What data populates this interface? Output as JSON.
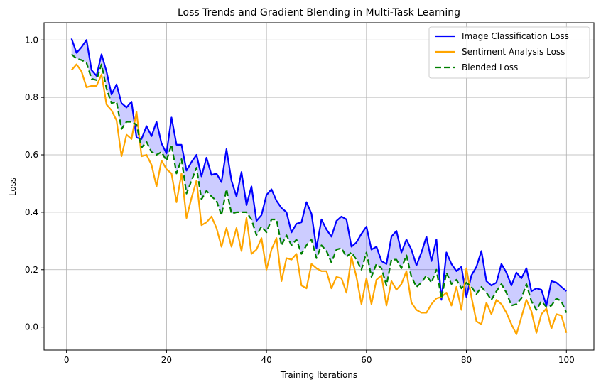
{
  "chart_data": {
    "type": "line",
    "title": "Loss Trends and Gradient Blending in Multi-Task Learning",
    "xlabel": "Training Iterations",
    "ylabel": "Loss",
    "xlim": [
      -4.5,
      105.5
    ],
    "ylim": [
      -0.08,
      1.06
    ],
    "xticks": [
      0,
      20,
      40,
      60,
      80,
      100
    ],
    "yticks": [
      0.0,
      0.2,
      0.4,
      0.6,
      0.8,
      1.0
    ],
    "xtick_labels": [
      "0",
      "20",
      "40",
      "60",
      "80",
      "100"
    ],
    "ytick_labels": [
      "0.0",
      "0.2",
      "0.4",
      "0.6",
      "0.8",
      "1.0"
    ],
    "grid": true,
    "legend_position": "top-right",
    "fill_between": {
      "series": [
        "Image Classification Loss",
        "Blended Loss"
      ],
      "color": "#0000ff",
      "opacity": 0.2
    },
    "x": [
      1,
      2,
      3,
      4,
      5,
      6,
      7,
      8,
      9,
      10,
      11,
      12,
      13,
      14,
      15,
      16,
      17,
      18,
      19,
      20,
      21,
      22,
      23,
      24,
      25,
      26,
      27,
      28,
      29,
      30,
      31,
      32,
      33,
      34,
      35,
      36,
      37,
      38,
      39,
      40,
      41,
      42,
      43,
      44,
      45,
      46,
      47,
      48,
      49,
      50,
      51,
      52,
      53,
      54,
      55,
      56,
      57,
      58,
      59,
      60,
      61,
      62,
      63,
      64,
      65,
      66,
      67,
      68,
      69,
      70,
      71,
      72,
      73,
      74,
      75,
      76,
      77,
      78,
      79,
      80,
      81,
      82,
      83,
      84,
      85,
      86,
      87,
      88,
      89,
      90,
      91,
      92,
      93,
      94,
      95,
      96,
      97,
      98,
      99,
      100
    ],
    "series": [
      {
        "name": "Image Classification Loss",
        "color": "#0000ff",
        "style": "solid",
        "values": [
          1.005,
          0.955,
          0.975,
          1.0,
          0.895,
          0.875,
          0.95,
          0.89,
          0.81,
          0.845,
          0.78,
          0.765,
          0.785,
          0.66,
          0.655,
          0.7,
          0.665,
          0.715,
          0.64,
          0.605,
          0.73,
          0.635,
          0.635,
          0.545,
          0.575,
          0.6,
          0.525,
          0.59,
          0.53,
          0.535,
          0.505,
          0.62,
          0.51,
          0.455,
          0.54,
          0.425,
          0.49,
          0.37,
          0.39,
          0.46,
          0.48,
          0.44,
          0.415,
          0.4,
          0.33,
          0.36,
          0.365,
          0.435,
          0.395,
          0.275,
          0.375,
          0.34,
          0.315,
          0.37,
          0.385,
          0.375,
          0.28,
          0.295,
          0.325,
          0.35,
          0.27,
          0.28,
          0.23,
          0.22,
          0.315,
          0.335,
          0.26,
          0.305,
          0.27,
          0.215,
          0.26,
          0.315,
          0.23,
          0.305,
          0.095,
          0.26,
          0.22,
          0.195,
          0.21,
          0.105,
          0.18,
          0.21,
          0.265,
          0.16,
          0.145,
          0.155,
          0.22,
          0.19,
          0.145,
          0.19,
          0.17,
          0.205,
          0.125,
          0.135,
          0.13,
          0.075,
          0.16,
          0.155,
          0.14,
          0.125
        ]
      },
      {
        "name": "Sentiment Analysis Loss",
        "color": "#ffa500",
        "style": "solid",
        "values": [
          0.895,
          0.915,
          0.89,
          0.835,
          0.84,
          0.84,
          0.88,
          0.775,
          0.755,
          0.72,
          0.595,
          0.67,
          0.655,
          0.75,
          0.595,
          0.6,
          0.565,
          0.49,
          0.58,
          0.55,
          0.535,
          0.435,
          0.535,
          0.38,
          0.45,
          0.51,
          0.355,
          0.365,
          0.385,
          0.345,
          0.28,
          0.345,
          0.28,
          0.345,
          0.265,
          0.38,
          0.255,
          0.27,
          0.31,
          0.2,
          0.27,
          0.31,
          0.16,
          0.24,
          0.235,
          0.255,
          0.145,
          0.135,
          0.22,
          0.205,
          0.195,
          0.195,
          0.135,
          0.175,
          0.17,
          0.12,
          0.245,
          0.175,
          0.08,
          0.17,
          0.08,
          0.165,
          0.18,
          0.075,
          0.16,
          0.13,
          0.15,
          0.195,
          0.085,
          0.06,
          0.05,
          0.05,
          0.08,
          0.1,
          0.105,
          0.12,
          0.075,
          0.14,
          0.06,
          0.205,
          0.105,
          0.02,
          0.01,
          0.085,
          0.045,
          0.095,
          0.08,
          0.05,
          0.01,
          -0.025,
          0.035,
          0.095,
          0.055,
          -0.02,
          0.045,
          0.065,
          -0.005,
          0.045,
          0.04,
          -0.02
        ]
      },
      {
        "name": "Blended Loss",
        "color": "#008000",
        "style": "dashed",
        "values": [
          0.95,
          0.935,
          0.93,
          0.92,
          0.865,
          0.86,
          0.915,
          0.83,
          0.78,
          0.785,
          0.69,
          0.715,
          0.715,
          0.705,
          0.625,
          0.645,
          0.61,
          0.6,
          0.61,
          0.58,
          0.635,
          0.535,
          0.585,
          0.465,
          0.51,
          0.555,
          0.445,
          0.475,
          0.455,
          0.44,
          0.39,
          0.48,
          0.395,
          0.4,
          0.4,
          0.4,
          0.375,
          0.32,
          0.35,
          0.33,
          0.375,
          0.375,
          0.285,
          0.32,
          0.285,
          0.305,
          0.255,
          0.285,
          0.305,
          0.24,
          0.285,
          0.265,
          0.225,
          0.27,
          0.275,
          0.245,
          0.26,
          0.235,
          0.2,
          0.26,
          0.175,
          0.22,
          0.205,
          0.145,
          0.235,
          0.235,
          0.205,
          0.25,
          0.175,
          0.14,
          0.155,
          0.18,
          0.155,
          0.2,
          0.1,
          0.19,
          0.15,
          0.165,
          0.135,
          0.155,
          0.14,
          0.115,
          0.14,
          0.12,
          0.095,
          0.125,
          0.15,
          0.12,
          0.075,
          0.08,
          0.1,
          0.15,
          0.09,
          0.06,
          0.09,
          0.07,
          0.075,
          0.1,
          0.09,
          0.05
        ]
      }
    ]
  }
}
